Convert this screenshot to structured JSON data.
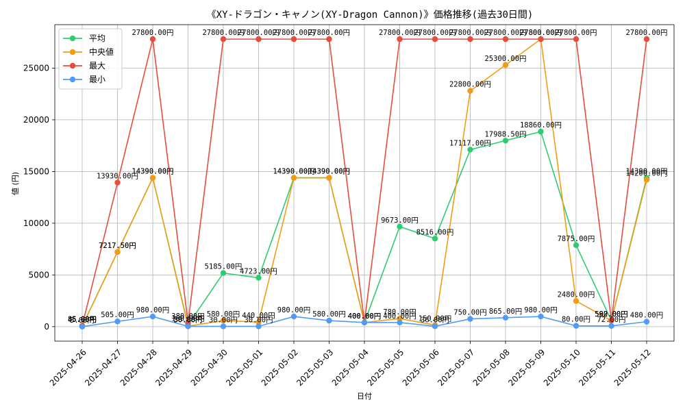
{
  "chart_data": {
    "type": "line",
    "title": "《XY-ドラゴン・キャノン(XY-Dragon Cannon)》価格推移(過去30日間)",
    "xlabel": "日付",
    "ylabel": "値 (円)",
    "categories": [
      "2025-04-26",
      "2025-04-27",
      "2025-04-28",
      "2025-04-29",
      "2025-04-30",
      "2025-05-01",
      "2025-05-02",
      "2025-05-03",
      "2025-05-04",
      "2025-05-05",
      "2025-05-06",
      "2025-05-07",
      "2025-05-08",
      "2025-05-09",
      "2025-05-10",
      "2025-05-11",
      "2025-05-12"
    ],
    "ylim": [
      -1400,
      29200
    ],
    "yticks": [
      0,
      5000,
      10000,
      15000,
      20000,
      25000
    ],
    "grid": true,
    "legend_position": "top-left",
    "label_suffix": "円",
    "series": [
      {
        "name": "平均",
        "color": "#2ecc71",
        "values": [
          45,
          7217.5,
          14390,
          160,
          5185,
          4723,
          14390,
          14390,
          400,
          9673,
          8516,
          17117,
          17988.5,
          18860,
          7875,
          592,
          14390
        ]
      },
      {
        "name": "中央値",
        "color": "#f39c12",
        "values": [
          45,
          7217.5,
          14390,
          50,
          580,
          440,
          14390,
          14390,
          400,
          780,
          150,
          22800,
          25300,
          27800,
          2480,
          580,
          14200
        ]
      },
      {
        "name": "最大",
        "color": "#e74c3c",
        "values": [
          85,
          13930,
          27800,
          380,
          27800,
          27800,
          27800,
          27800,
          400,
          27800,
          27800,
          27800,
          27800,
          27800,
          27800,
          592,
          27800
        ]
      },
      {
        "name": "最小",
        "color": "#4f9bf5",
        "values": [
          5,
          505,
          980,
          30,
          30,
          30,
          980,
          580,
          400,
          400,
          36,
          750,
          865,
          980,
          80,
          72,
          480
        ]
      }
    ]
  }
}
